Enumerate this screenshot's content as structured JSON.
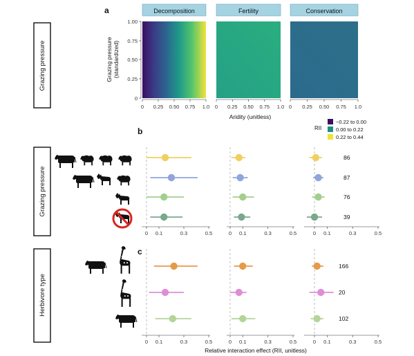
{
  "panel_letters": {
    "a": "a",
    "b": "b",
    "c": "c"
  },
  "side_labels": {
    "grazing_pressure_a": "Grazing pressure",
    "grazing_pressure_b": "Grazing pressure",
    "herbivore_type": "Herbivore type"
  },
  "colors": {
    "strip_bg": "#a6d3e2",
    "ref_line": "#bdbdbd",
    "legend_low": "#3b0f63",
    "legend_mid": "#1f8f86",
    "legend_high": "#f1e23a"
  },
  "icons": {
    "b_rows": [
      "cattle-sheep-sheep-sheep-icon",
      "cattle-goat-sheep-icon",
      "goat-icon",
      "no-grazing-icon"
    ],
    "c_rows": [
      "cattle-giraffe-icon",
      "giraffe-icon",
      "cattle-icon"
    ]
  },
  "chart_data": [
    {
      "panel": "a",
      "type": "heatmap",
      "facets": [
        "Decomposition",
        "Fertility",
        "Conservation"
      ],
      "xlabel": "Aridity (unitless)",
      "ylabel": "Grazing pressure\n(standardized)",
      "xlim": [
        0,
        1
      ],
      "ylim": [
        0,
        1
      ],
      "xticks": [
        "0",
        "0.25",
        "0.50",
        "0.75",
        "1.0"
      ],
      "yticks": [
        "0",
        "0.25",
        "0.50",
        "0.75",
        "1.00"
      ],
      "fill_ranges": {
        "Decomposition": {
          "x0_y0": -0.22,
          "x1_y0": 0.44,
          "x0_y1": -0.18,
          "x1_y1": 0.4
        },
        "Fertility": {
          "x0_y0": 0.12,
          "x1_y0": 0.17,
          "x0_y1": 0.13,
          "x1_y1": 0.18
        },
        "Conservation": {
          "x0_y0": 0.06,
          "x1_y0": 0.065,
          "x0_y1": 0.065,
          "x1_y1": 0.07
        }
      },
      "legend": {
        "title": "RII",
        "entries": [
          {
            "label": "−0.22 to 0.00",
            "color": "#3b0f63"
          },
          {
            "label": "0.00 to 0.22",
            "color": "#1f8f86"
          },
          {
            "label": "0.22 to 0.44",
            "color": "#f1e23a"
          }
        ]
      }
    },
    {
      "panel": "b",
      "type": "scatter",
      "orientation": "horizontal-interval",
      "xlim": [
        -0.05,
        0.5
      ],
      "xticks": [
        "0",
        "0.1",
        "0.3",
        "0.5"
      ],
      "rows": [
        {
          "n": "86",
          "color": "#f1cf5f",
          "points": [
            {
              "mean": 0.15,
              "lo": 0.0,
              "hi": 0.36
            },
            {
              "mean": 0.07,
              "lo": 0.01,
              "hi": 0.12
            },
            {
              "mean": 0.01,
              "lo": -0.04,
              "hi": 0.06
            }
          ]
        },
        {
          "n": "87",
          "color": "#8fa5dc",
          "points": [
            {
              "mean": 0.2,
              "lo": 0.03,
              "hi": 0.41
            },
            {
              "mean": 0.08,
              "lo": 0.02,
              "hi": 0.14
            },
            {
              "mean": 0.03,
              "lo": -0.01,
              "hi": 0.07
            }
          ]
        },
        {
          "n": "76",
          "color": "#a3cf8c",
          "points": [
            {
              "mean": 0.14,
              "lo": 0.0,
              "hi": 0.3
            },
            {
              "mean": 0.1,
              "lo": 0.02,
              "hi": 0.19
            },
            {
              "mean": 0.03,
              "lo": -0.02,
              "hi": 0.08
            }
          ]
        },
        {
          "n": "39",
          "color": "#78a98b",
          "points": [
            {
              "mean": 0.14,
              "lo": 0.03,
              "hi": 0.29
            },
            {
              "mean": 0.09,
              "lo": 0.03,
              "hi": 0.16
            },
            {
              "mean": 0.0,
              "lo": -0.06,
              "hi": 0.06
            }
          ]
        }
      ]
    },
    {
      "panel": "c",
      "type": "scatter",
      "orientation": "horizontal-interval",
      "xlabel": "Relative interaction effect (RII, unitless)",
      "xlim": [
        -0.05,
        0.5
      ],
      "xticks": [
        "0",
        "0.1",
        "0.3",
        "0.5"
      ],
      "rows": [
        {
          "n": "166",
          "color": "#e59a4b",
          "points": [
            {
              "mean": 0.22,
              "lo": 0.06,
              "hi": 0.41
            },
            {
              "mean": 0.1,
              "lo": 0.03,
              "hi": 0.18
            },
            {
              "mean": 0.02,
              "lo": -0.02,
              "hi": 0.07
            }
          ]
        },
        {
          "n": "20",
          "color": "#dd8fd6",
          "points": [
            {
              "mean": 0.15,
              "lo": 0.02,
              "hi": 0.3
            },
            {
              "mean": 0.07,
              "lo": 0.0,
              "hi": 0.13
            },
            {
              "mean": 0.05,
              "lo": -0.04,
              "hi": 0.15
            }
          ]
        },
        {
          "n": "102",
          "color": "#b4d49a",
          "points": [
            {
              "mean": 0.21,
              "lo": 0.07,
              "hi": 0.36
            },
            {
              "mean": 0.1,
              "lo": 0.01,
              "hi": 0.2
            },
            {
              "mean": 0.02,
              "lo": -0.03,
              "hi": 0.07
            }
          ]
        }
      ]
    }
  ]
}
